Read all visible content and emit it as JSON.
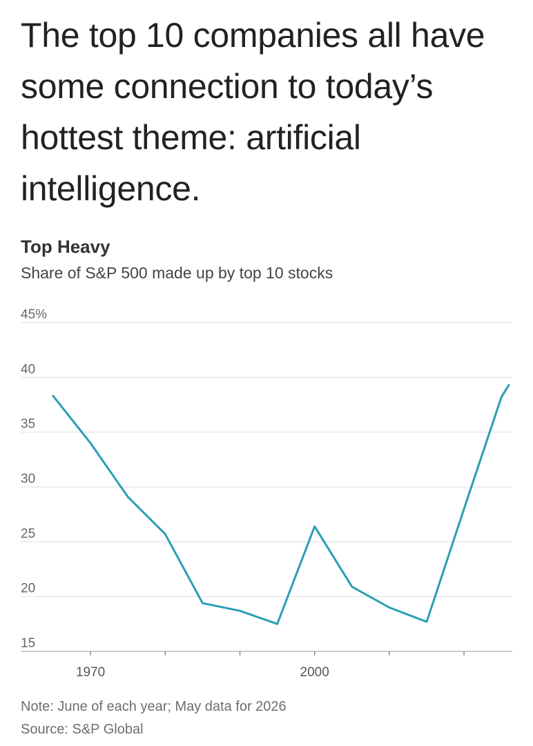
{
  "headline": "The top 10 companies all have some connection to today’s hottest theme: artificial intelligence.",
  "footer": {
    "note": "Note: June of each year; May data for 2026",
    "source": "Source: S&P Global"
  },
  "chart_data": {
    "type": "line",
    "title": "Top Heavy",
    "subtitle": "Share of S&P 500 made up by top 10 stocks",
    "xlabel": "",
    "ylabel": "",
    "xlim": [
      1964,
      2026
    ],
    "ylim": [
      15,
      45
    ],
    "y_ticks": [
      {
        "value": 45,
        "label": "45%"
      },
      {
        "value": 40,
        "label": "40"
      },
      {
        "value": 35,
        "label": "35"
      },
      {
        "value": 30,
        "label": "30"
      },
      {
        "value": 25,
        "label": "25"
      },
      {
        "value": 20,
        "label": "20"
      },
      {
        "value": 15,
        "label": "15"
      }
    ],
    "x_ticks": [
      {
        "value": 1970,
        "label": "1970"
      },
      {
        "value": 1980,
        "label": ""
      },
      {
        "value": 1990,
        "label": ""
      },
      {
        "value": 2000,
        "label": "2000"
      },
      {
        "value": 2010,
        "label": ""
      },
      {
        "value": 2020,
        "label": ""
      }
    ],
    "grid": true,
    "line_color": "#2a9db5",
    "series": [
      {
        "name": "",
        "x": [
          1965,
          1970,
          1975,
          1980,
          1985,
          1990,
          1995,
          2000,
          2005,
          2010,
          2015,
          2020,
          2025,
          2026
        ],
        "y": [
          38.3,
          34.0,
          29.1,
          25.7,
          19.4,
          18.7,
          17.5,
          26.4,
          20.9,
          19.0,
          17.7,
          28.0,
          38.2,
          39.3
        ]
      }
    ]
  }
}
